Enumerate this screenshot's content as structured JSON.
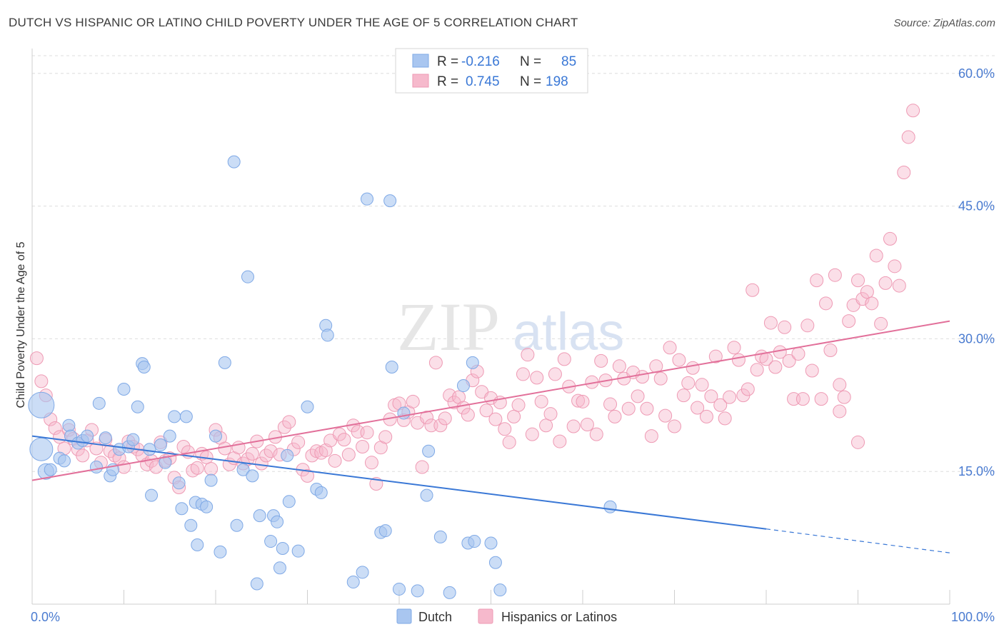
{
  "title": "DUTCH VS HISPANIC OR LATINO CHILD POVERTY UNDER THE AGE OF 5 CORRELATION CHART",
  "source": "Source: ZipAtlas.com",
  "watermark": {
    "zip": "ZIP",
    "atlas": "atlas"
  },
  "colors": {
    "dutch_fill": "#a9c6f0",
    "dutch_stroke": "#7fa9e6",
    "dutch_line": "#3a78d6",
    "hisp_fill": "#f6b9cc",
    "hisp_stroke": "#ee9ab4",
    "hisp_line": "#e2709a",
    "grid": "#dddddd",
    "tick_text": "#4a7bd0"
  },
  "legend": {
    "rows": [
      {
        "r_label": "R =",
        "r_value": "-0.216",
        "n_label": "N =",
        "n_value": "85"
      },
      {
        "r_label": "R =",
        "r_value": "0.745",
        "n_label": "N =",
        "n_value": "198"
      }
    ]
  },
  "bottom_legend": {
    "dutch": "Dutch",
    "hisp": "Hispanics or Latinos"
  },
  "chart_data": {
    "type": "scatter",
    "title": "DUTCH VS HISPANIC OR LATINO CHILD POVERTY UNDER THE AGE OF 5 CORRELATION CHART",
    "xlabel": "",
    "ylabel": "Child Poverty Under the Age of 5",
    "xlim": [
      0,
      100
    ],
    "ylim": [
      0,
      62
    ],
    "x_tick_labels": [
      "0.0%",
      "100.0%"
    ],
    "y_ticks": [
      15,
      30,
      45,
      60
    ],
    "y_tick_labels": [
      "15.0%",
      "30.0%",
      "45.0%",
      "60.0%"
    ],
    "grid": true,
    "legend_position": "top-center",
    "series": [
      {
        "name": "Dutch",
        "R": -0.216,
        "N": 85,
        "trend": {
          "x": [
            0,
            80
          ],
          "y": [
            19.0,
            8.5
          ],
          "dashed_to": [
            100,
            5.8
          ]
        },
        "points": [
          [
            1,
            22.5
          ],
          [
            1,
            17.5
          ],
          [
            1.5,
            15
          ],
          [
            2,
            15.2
          ],
          [
            3,
            16.5
          ],
          [
            3.5,
            16.2
          ],
          [
            4,
            20.2
          ],
          [
            4.2,
            19
          ],
          [
            5,
            18.2
          ],
          [
            5.5,
            18.5
          ],
          [
            6,
            19
          ],
          [
            7,
            15.5
          ],
          [
            7.3,
            22.7
          ],
          [
            8,
            18.8
          ],
          [
            8.5,
            14.5
          ],
          [
            8.8,
            15.2
          ],
          [
            9.5,
            17.5
          ],
          [
            10,
            24.3
          ],
          [
            10.5,
            17.8
          ],
          [
            11,
            18.6
          ],
          [
            11.5,
            22.3
          ],
          [
            12,
            27.2
          ],
          [
            12.2,
            26.8
          ],
          [
            12.8,
            17.5
          ],
          [
            13,
            12.3
          ],
          [
            14,
            18
          ],
          [
            14.5,
            16
          ],
          [
            15,
            19
          ],
          [
            15.5,
            21.2
          ],
          [
            16,
            13.7
          ],
          [
            16.3,
            10.8
          ],
          [
            16.8,
            21.2
          ],
          [
            17.3,
            8.9
          ],
          [
            17.8,
            11.5
          ],
          [
            18,
            6.7
          ],
          [
            18.5,
            11.3
          ],
          [
            19,
            11
          ],
          [
            19.5,
            14
          ],
          [
            20,
            19
          ],
          [
            20.5,
            5.9
          ],
          [
            21,
            27.3
          ],
          [
            22,
            50
          ],
          [
            22.3,
            8.9
          ],
          [
            23,
            15.2
          ],
          [
            23.5,
            37
          ],
          [
            24,
            14.5
          ],
          [
            24.5,
            2.3
          ],
          [
            24.8,
            10
          ],
          [
            26,
            7.1
          ],
          [
            26.3,
            10
          ],
          [
            26.7,
            9.3
          ],
          [
            27,
            4.1
          ],
          [
            27.3,
            6.3
          ],
          [
            27.8,
            16.8
          ],
          [
            28,
            11.6
          ],
          [
            29,
            6
          ],
          [
            30,
            22.3
          ],
          [
            31,
            13
          ],
          [
            31.5,
            12.6
          ],
          [
            32,
            31.5
          ],
          [
            32.2,
            30.4
          ],
          [
            35,
            2.5
          ],
          [
            36,
            3.6
          ],
          [
            36.5,
            45.8
          ],
          [
            38,
            8.1
          ],
          [
            38.5,
            8.3
          ],
          [
            39,
            45.6
          ],
          [
            39.2,
            26.8
          ],
          [
            40,
            1.7
          ],
          [
            40.5,
            21.6
          ],
          [
            42,
            1.5
          ],
          [
            43,
            12.3
          ],
          [
            43.2,
            17.3
          ],
          [
            44.5,
            7.6
          ],
          [
            45.5,
            1.3
          ],
          [
            47,
            24.7
          ],
          [
            47.5,
            6.9
          ],
          [
            48,
            27.3
          ],
          [
            48.2,
            7.1
          ],
          [
            50,
            6.9
          ],
          [
            50.5,
            4.7
          ],
          [
            51,
            1.6
          ],
          [
            63,
            11
          ]
        ],
        "sizes": {
          "0": 18,
          "1": 16,
          "2": 11
        }
      },
      {
        "name": "Hispanics or Latinos",
        "R": 0.745,
        "N": 198,
        "trend": {
          "x": [
            0,
            100
          ],
          "y": [
            14,
            32
          ]
        },
        "points": [
          [
            0.5,
            27.8
          ],
          [
            1,
            25.2
          ],
          [
            1.5,
            23.6
          ],
          [
            2,
            20.9
          ],
          [
            2.5,
            19.9
          ],
          [
            3,
            18.9
          ],
          [
            3.5,
            17.6
          ],
          [
            4,
            19.7
          ],
          [
            4.5,
            18.7
          ],
          [
            5,
            17.5
          ],
          [
            5.5,
            16.8
          ],
          [
            6,
            18.5
          ],
          [
            6.5,
            19.7
          ],
          [
            7,
            17.6
          ],
          [
            7.5,
            16
          ],
          [
            8,
            18.6
          ],
          [
            8.5,
            17.3
          ],
          [
            9,
            16.8
          ],
          [
            9.5,
            16.5
          ],
          [
            10,
            15.5
          ],
          [
            10.5,
            18.4
          ],
          [
            11,
            17.8
          ],
          [
            11.5,
            17.5
          ],
          [
            12,
            16.8
          ],
          [
            12.5,
            15.8
          ],
          [
            13,
            16.2
          ],
          [
            13.5,
            15.5
          ],
          [
            14,
            18.3
          ],
          [
            14.5,
            16.2
          ],
          [
            15,
            16.5
          ],
          [
            15.5,
            14.3
          ],
          [
            16,
            13.2
          ],
          [
            16.5,
            17.8
          ],
          [
            17,
            17.2
          ],
          [
            17.5,
            15.1
          ],
          [
            18,
            15.4
          ],
          [
            18.5,
            17
          ],
          [
            19,
            16.6
          ],
          [
            19.5,
            15.3
          ],
          [
            20,
            19.7
          ],
          [
            20.5,
            18.8
          ],
          [
            21,
            17.6
          ],
          [
            21.5,
            15.8
          ],
          [
            22,
            16.5
          ],
          [
            22.5,
            17.7
          ],
          [
            23,
            15.9
          ],
          [
            23.5,
            16.4
          ],
          [
            24,
            17
          ],
          [
            24.5,
            18.4
          ],
          [
            25,
            15.9
          ],
          [
            25.5,
            16.8
          ],
          [
            26,
            17.3
          ],
          [
            26.5,
            18.9
          ],
          [
            27,
            16.9
          ],
          [
            27.5,
            20
          ],
          [
            28,
            20.6
          ],
          [
            28.5,
            17.5
          ],
          [
            29,
            18.3
          ],
          [
            29.5,
            15.2
          ],
          [
            30,
            14.5
          ],
          [
            30.5,
            16.8
          ],
          [
            31,
            17.3
          ],
          [
            31.5,
            17.1
          ],
          [
            32,
            17.4
          ],
          [
            32.5,
            18.5
          ],
          [
            33,
            16.2
          ],
          [
            33.5,
            19.2
          ],
          [
            34,
            18.6
          ],
          [
            34.5,
            16.9
          ],
          [
            35,
            20.2
          ],
          [
            35.5,
            19.5
          ],
          [
            36,
            17.8
          ],
          [
            36.5,
            19.4
          ],
          [
            37,
            16
          ],
          [
            37.5,
            13.6
          ],
          [
            38,
            17.7
          ],
          [
            38.5,
            18.9
          ],
          [
            39,
            20.9
          ],
          [
            39.5,
            22.5
          ],
          [
            40,
            22.7
          ],
          [
            40.5,
            20.8
          ],
          [
            41,
            21.7
          ],
          [
            41.5,
            22.9
          ],
          [
            42,
            20.5
          ],
          [
            42.5,
            15.5
          ],
          [
            43,
            21.1
          ],
          [
            43.5,
            20.2
          ],
          [
            44,
            27.3
          ],
          [
            44.5,
            20.2
          ],
          [
            45,
            21
          ],
          [
            45.5,
            23.6
          ],
          [
            46,
            22.8
          ],
          [
            46.5,
            23.4
          ],
          [
            47,
            22.2
          ],
          [
            47.5,
            21.4
          ],
          [
            48,
            25.3
          ],
          [
            48.5,
            26.3
          ],
          [
            49,
            24
          ],
          [
            49.5,
            21.9
          ],
          [
            50,
            23.3
          ],
          [
            50.5,
            20.9
          ],
          [
            51,
            22.8
          ],
          [
            51.5,
            19.8
          ],
          [
            52,
            18.3
          ],
          [
            52.5,
            21.2
          ],
          [
            53,
            22.5
          ],
          [
            53.5,
            26
          ],
          [
            54,
            28.2
          ],
          [
            54.5,
            19.2
          ],
          [
            55,
            25.6
          ],
          [
            55.5,
            22.9
          ],
          [
            56,
            20.2
          ],
          [
            56.5,
            21.5
          ],
          [
            57,
            26
          ],
          [
            57.5,
            18.4
          ],
          [
            58,
            27.7
          ],
          [
            58.5,
            24.6
          ],
          [
            59,
            20.1
          ],
          [
            59.5,
            23
          ],
          [
            60,
            22.9
          ],
          [
            60.5,
            20.3
          ],
          [
            61,
            25.1
          ],
          [
            61.5,
            19.2
          ],
          [
            62,
            27.5
          ],
          [
            62.5,
            25.3
          ],
          [
            63,
            22.6
          ],
          [
            63.5,
            21.2
          ],
          [
            64,
            26.9
          ],
          [
            64.5,
            25.5
          ],
          [
            65,
            22.1
          ],
          [
            65.5,
            26.2
          ],
          [
            66,
            23.5
          ],
          [
            66.5,
            25.7
          ],
          [
            67,
            22.1
          ],
          [
            67.5,
            19
          ],
          [
            68,
            26.9
          ],
          [
            68.5,
            25.5
          ],
          [
            69,
            21.3
          ],
          [
            69.5,
            29
          ],
          [
            70,
            20.1
          ],
          [
            70.5,
            27.6
          ],
          [
            71,
            23.6
          ],
          [
            71.5,
            25
          ],
          [
            72,
            26.7
          ],
          [
            72.5,
            22.2
          ],
          [
            73,
            24.8
          ],
          [
            73.5,
            21.2
          ],
          [
            74,
            23.5
          ],
          [
            74.5,
            28
          ],
          [
            75,
            22.5
          ],
          [
            75.5,
            21
          ],
          [
            76,
            23.4
          ],
          [
            76.5,
            29
          ],
          [
            77,
            27.6
          ],
          [
            77.5,
            23.6
          ],
          [
            78,
            24.3
          ],
          [
            78.5,
            35.5
          ],
          [
            79,
            26.5
          ],
          [
            79.5,
            28
          ],
          [
            80,
            27.7
          ],
          [
            80.5,
            31.8
          ],
          [
            81,
            26.8
          ],
          [
            81.5,
            28.5
          ],
          [
            82,
            31.3
          ],
          [
            82.5,
            27.5
          ],
          [
            83,
            23.2
          ],
          [
            83.5,
            28.3
          ],
          [
            84,
            23.2
          ],
          [
            84.5,
            31.5
          ],
          [
            85,
            26.4
          ],
          [
            85.5,
            36.6
          ],
          [
            86,
            23.2
          ],
          [
            86.5,
            34
          ],
          [
            87,
            28.7
          ],
          [
            87.5,
            37.2
          ],
          [
            88,
            24.8
          ],
          [
            88.5,
            23.4
          ],
          [
            89,
            32
          ],
          [
            89.5,
            33.8
          ],
          [
            90,
            36.6
          ],
          [
            90.5,
            34.5
          ],
          [
            91,
            35.3
          ],
          [
            91.5,
            34
          ],
          [
            92,
            39.4
          ],
          [
            92.5,
            31.7
          ],
          [
            93,
            36.3
          ],
          [
            93.5,
            41.3
          ],
          [
            94,
            38.2
          ],
          [
            94.5,
            36
          ],
          [
            95,
            48.8
          ],
          [
            95.5,
            52.8
          ],
          [
            96,
            55.8
          ],
          [
            90,
            18.3
          ],
          [
            88,
            21.8
          ]
        ]
      }
    ]
  }
}
